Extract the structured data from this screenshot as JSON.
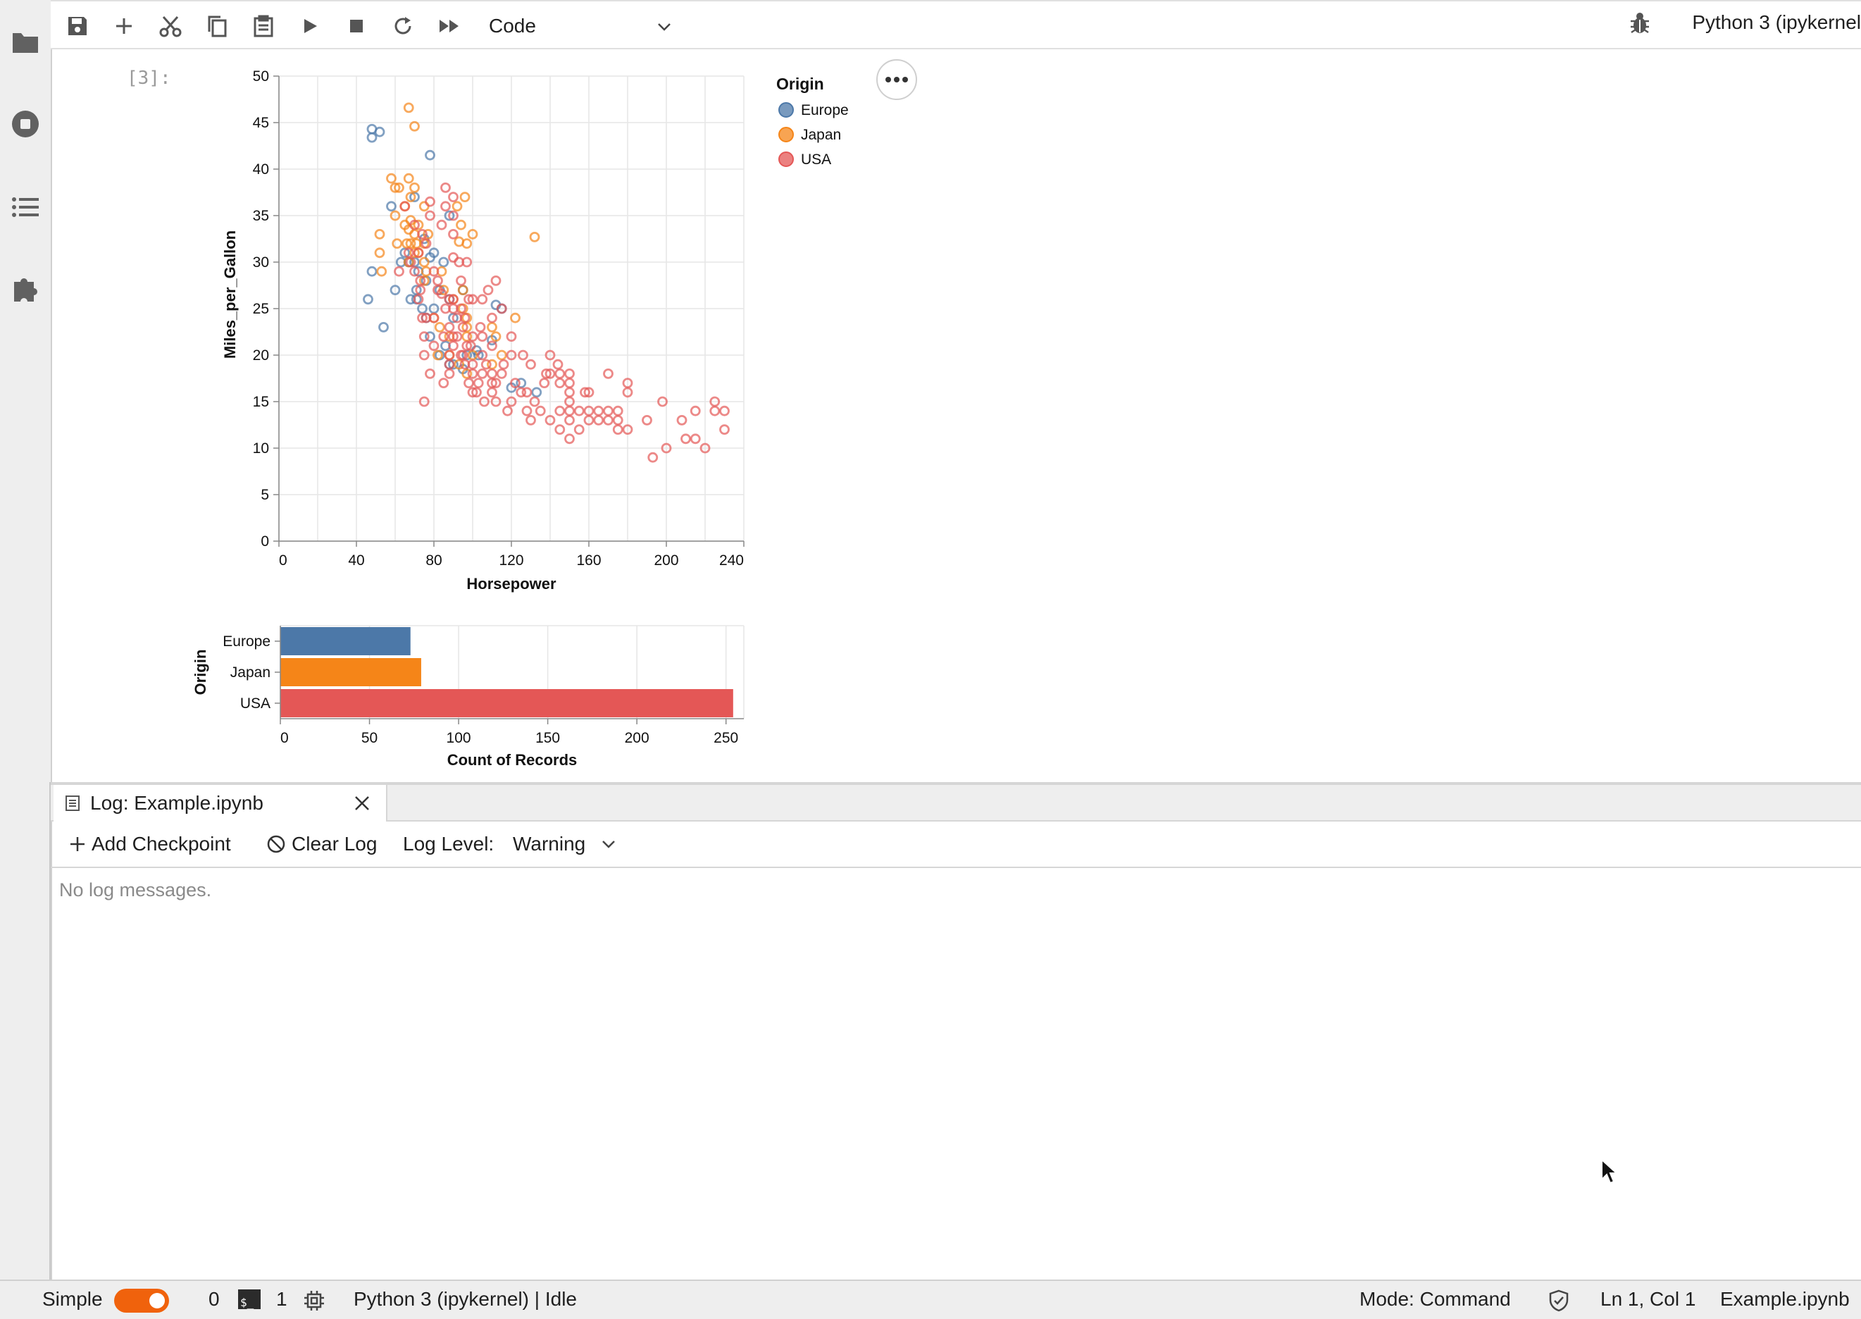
{
  "sidebar": {
    "icons": [
      "folder-icon",
      "running-icon",
      "toc-icon",
      "extension-icon"
    ]
  },
  "toolbar": {
    "icons": [
      "save-icon",
      "add-icon",
      "cut-icon",
      "copy-icon",
      "paste-icon",
      "run-icon",
      "stop-icon",
      "restart-icon",
      "fast-forward-icon"
    ],
    "cell_type": "Code",
    "kernel": "Python 3 (ipykernel"
  },
  "cell": {
    "prompt": "[3]:"
  },
  "chart_data": [
    {
      "type": "scatter",
      "xlabel": "Horsepower",
      "ylabel": "Miles_per_Gallon",
      "xlim": [
        0,
        240
      ],
      "ylim": [
        0,
        50
      ],
      "xticks": [
        "0",
        "40",
        "80",
        "120",
        "160",
        "200",
        "240"
      ],
      "yticks": [
        "0",
        "5",
        "10",
        "15",
        "20",
        "25",
        "30",
        "35",
        "40",
        "45",
        "50"
      ],
      "grid": true,
      "legend": {
        "title": "Origin",
        "placement": "right",
        "entries": [
          "Europe",
          "Japan",
          "USA"
        ]
      },
      "colors": {
        "Europe": "#4c78a8",
        "Japan": "#f58518",
        "USA": "#e45756"
      },
      "series": [
        {
          "name": "Europe",
          "points": [
            [
              46,
              26
            ],
            [
              48,
              44.3
            ],
            [
              48,
              43.4
            ],
            [
              52,
              44
            ],
            [
              48,
              29
            ],
            [
              54,
              23
            ],
            [
              58,
              36
            ],
            [
              60,
              27
            ],
            [
              63,
              30
            ],
            [
              65,
              31
            ],
            [
              67,
              30
            ],
            [
              68,
              26
            ],
            [
              70,
              37
            ],
            [
              70,
              30
            ],
            [
              71,
              26
            ],
            [
              71,
              27
            ],
            [
              72,
              29
            ],
            [
              74,
              25
            ],
            [
              75,
              32.5
            ],
            [
              76,
              24
            ],
            [
              76,
              28
            ],
            [
              78,
              41.5
            ],
            [
              78,
              22
            ],
            [
              78,
              30.5
            ],
            [
              80,
              25
            ],
            [
              80,
              31
            ],
            [
              83,
              20
            ],
            [
              83,
              27
            ],
            [
              85,
              30
            ],
            [
              86,
              21
            ],
            [
              88,
              19
            ],
            [
              88,
              35
            ],
            [
              88,
              26
            ],
            [
              90,
              24
            ],
            [
              90,
              19
            ],
            [
              95,
              18.5
            ],
            [
              95,
              27
            ],
            [
              97,
              20
            ],
            [
              102,
              20.5
            ],
            [
              103,
              20
            ],
            [
              110,
              21.6
            ],
            [
              112,
              25.4
            ],
            [
              115,
              25
            ],
            [
              120,
              16.5
            ],
            [
              125,
              17
            ],
            [
              133,
              16
            ]
          ]
        },
        {
          "name": "Japan",
          "points": [
            [
              52,
              31
            ],
            [
              52,
              33
            ],
            [
              53,
              29
            ],
            [
              58,
              39
            ],
            [
              60,
              35
            ],
            [
              60,
              38
            ],
            [
              61,
              32
            ],
            [
              62,
              38
            ],
            [
              65,
              34
            ],
            [
              65,
              36
            ],
            [
              66,
              32
            ],
            [
              67,
              30
            ],
            [
              67,
              33.5
            ],
            [
              67,
              39
            ],
            [
              67,
              46.6
            ],
            [
              68,
              32
            ],
            [
              68,
              34.5
            ],
            [
              68,
              37
            ],
            [
              70,
              33
            ],
            [
              70,
              38
            ],
            [
              70,
              44.6
            ],
            [
              70,
              31
            ],
            [
              71,
              32
            ],
            [
              72,
              31
            ],
            [
              72,
              34
            ],
            [
              75,
              32
            ],
            [
              75,
              30
            ],
            [
              75,
              28
            ],
            [
              75,
              36
            ],
            [
              76,
              29
            ],
            [
              77,
              33
            ],
            [
              80,
              24
            ],
            [
              82,
              20
            ],
            [
              83,
              23
            ],
            [
              84,
              29
            ],
            [
              85,
              27
            ],
            [
              88,
              22
            ],
            [
              88,
              20
            ],
            [
              90,
              26
            ],
            [
              92,
              36
            ],
            [
              93,
              19
            ],
            [
              93,
              32.2
            ],
            [
              94,
              34
            ],
            [
              95,
              25
            ],
            [
              95,
              27
            ],
            [
              96,
              37
            ],
            [
              97,
              24
            ],
            [
              97,
              23
            ],
            [
              97,
              22
            ],
            [
              97,
              32
            ],
            [
              97,
              18
            ],
            [
              100,
              33
            ],
            [
              100,
              20
            ],
            [
              110,
              19
            ],
            [
              110,
              23
            ],
            [
              112,
              22
            ],
            [
              115,
              20
            ],
            [
              122,
              24
            ],
            [
              132,
              32.7
            ]
          ]
        },
        {
          "name": "USA",
          "points": [
            [
              62,
              29
            ],
            [
              65,
              36
            ],
            [
              67,
              31
            ],
            [
              68,
              30
            ],
            [
              70,
              29
            ],
            [
              70,
              34
            ],
            [
              72,
              31
            ],
            [
              72,
              26
            ],
            [
              73,
              27
            ],
            [
              74,
              24
            ],
            [
              75,
              22
            ],
            [
              75,
              15
            ],
            [
              75,
              20
            ],
            [
              76,
              32
            ],
            [
              78,
              36.5
            ],
            [
              80,
              29
            ],
            [
              82,
              28
            ],
            [
              84,
              26.6
            ],
            [
              85,
              22
            ],
            [
              85,
              17
            ],
            [
              86,
              25
            ],
            [
              88,
              26
            ],
            [
              88,
              18
            ],
            [
              88,
              23
            ],
            [
              88,
              20
            ],
            [
              88,
              19
            ],
            [
              90,
              33
            ],
            [
              90,
              25
            ],
            [
              90,
              30.5
            ],
            [
              90,
              22
            ],
            [
              90,
              26
            ],
            [
              90,
              21
            ],
            [
              92,
              24
            ],
            [
              94,
              20
            ],
            [
              95,
              20
            ],
            [
              95,
              23
            ],
            [
              96,
              19
            ],
            [
              97,
              21
            ],
            [
              98,
              26
            ],
            [
              100,
              16
            ],
            [
              100,
              18
            ],
            [
              100,
              22
            ],
            [
              100,
              19
            ],
            [
              103,
              17
            ],
            [
              105,
              18
            ],
            [
              105,
              20
            ],
            [
              105,
              22
            ],
            [
              107,
              19
            ],
            [
              110,
              16
            ],
            [
              110,
              17
            ],
            [
              110,
              18
            ],
            [
              110,
              21
            ],
            [
              112,
              15
            ],
            [
              115,
              18
            ],
            [
              120,
              15
            ],
            [
              125,
              16
            ],
            [
              130,
              13
            ],
            [
              135,
              14
            ],
            [
              140,
              20
            ],
            [
              140,
              18
            ],
            [
              145,
              17
            ],
            [
              145,
              14
            ],
            [
              150,
              15
            ],
            [
              150,
              16
            ],
            [
              150,
              13
            ],
            [
              150,
              14
            ],
            [
              150,
              11
            ],
            [
              150,
              18
            ],
            [
              155,
              14
            ],
            [
              160,
              14
            ],
            [
              165,
              13
            ],
            [
              165,
              14
            ],
            [
              170,
              13
            ],
            [
              175,
              13
            ],
            [
              175,
              14
            ],
            [
              180,
              12
            ],
            [
              180,
              16
            ],
            [
              190,
              13
            ],
            [
              193,
              9
            ],
            [
              198,
              15
            ],
            [
              200,
              10
            ],
            [
              210,
              11
            ],
            [
              215,
              11
            ],
            [
              215,
              14
            ],
            [
              220,
              10
            ],
            [
              225,
              14
            ],
            [
              230,
              14
            ],
            [
              230,
              12
            ],
            [
              225,
              15
            ],
            [
              208,
              13
            ],
            [
              180,
              17
            ],
            [
              160,
              16
            ],
            [
              170,
              18
            ],
            [
              145,
              18
            ],
            [
              137,
              17
            ],
            [
              128,
              16
            ],
            [
              118,
              14
            ],
            [
              112,
              28
            ],
            [
              105,
              26
            ],
            [
              97,
              30
            ],
            [
              94,
              28
            ],
            [
              94,
              25
            ],
            [
              92,
              22
            ],
            [
              90,
              35
            ],
            [
              86,
              38
            ],
            [
              84,
              34
            ],
            [
              82,
              27
            ],
            [
              80,
              21
            ],
            [
              80,
              24
            ],
            [
              78,
              18
            ],
            [
              78,
              35
            ],
            [
              76,
              24
            ],
            [
              74,
              33
            ],
            [
              73,
              28
            ],
            [
              86,
              36
            ],
            [
              90,
              37
            ],
            [
              93,
              30
            ],
            [
              100,
              26
            ],
            [
              110,
              24
            ],
            [
              120,
              22
            ],
            [
              130,
              19
            ],
            [
              115,
              25
            ],
            [
              108,
              27
            ],
            [
              104,
              23
            ],
            [
              99,
              21
            ],
            [
              96,
              24
            ],
            [
              98,
              17
            ],
            [
              102,
              16
            ],
            [
              106,
              15
            ],
            [
              112,
              17
            ],
            [
              128,
              14
            ],
            [
              140,
              13
            ],
            [
              155,
              12
            ],
            [
              145,
              12
            ],
            [
              160,
              13
            ],
            [
              170,
              14
            ],
            [
              175,
              12
            ],
            [
              158,
              16
            ],
            [
              150,
              17
            ],
            [
              144,
              19
            ],
            [
              138,
              18
            ],
            [
              132,
              15
            ],
            [
              122,
              17
            ],
            [
              116,
              19
            ],
            [
              120,
              20
            ],
            [
              126,
              20
            ]
          ]
        }
      ]
    },
    {
      "type": "bar",
      "orientation": "horizontal",
      "categories": [
        "Europe",
        "Japan",
        "USA"
      ],
      "values": [
        73,
        79,
        254
      ],
      "xlabel": "Count of Records",
      "ylabel": "Origin",
      "xlim": [
        0,
        260
      ],
      "xticks": [
        "0",
        "50",
        "100",
        "150",
        "200",
        "250"
      ],
      "grid": true,
      "colors": [
        "#4c78a8",
        "#f58518",
        "#e45756"
      ]
    }
  ],
  "log_panel": {
    "tab_title": "Log: Example.ipynb",
    "add_checkpoint": "Add Checkpoint",
    "clear_log": "Clear Log",
    "level_label": "Log Level:",
    "level_value": "Warning",
    "empty_message": "No log messages."
  },
  "statusbar": {
    "mode_label": "Simple",
    "terminals_count": "0",
    "kernels_count": "1",
    "kernel_status": "Python 3 (ipykernel) | Idle",
    "mode": "Mode: Command",
    "position": "Ln 1, Col 1",
    "filename": "Example.ipynb"
  }
}
